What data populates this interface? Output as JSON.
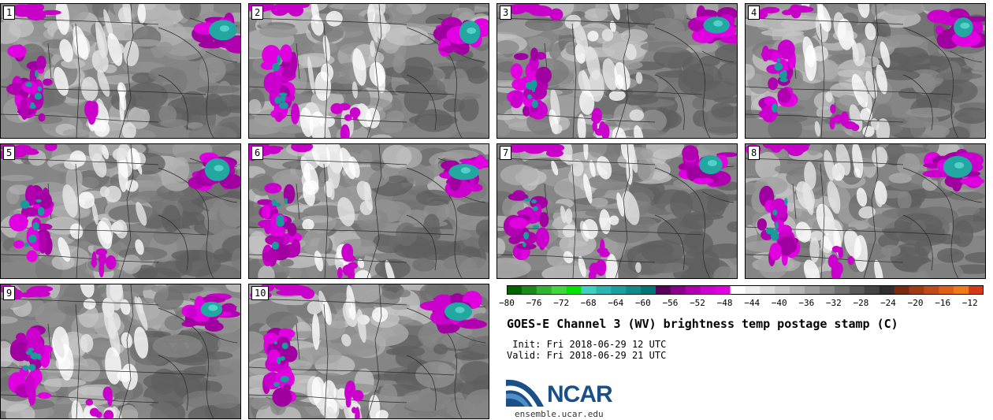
{
  "panels": [
    {
      "label": "1"
    },
    {
      "label": "2"
    },
    {
      "label": "3"
    },
    {
      "label": "4"
    },
    {
      "label": "5"
    },
    {
      "label": "6"
    },
    {
      "label": "7"
    },
    {
      "label": "8"
    },
    {
      "label": "9"
    },
    {
      "label": "10"
    }
  ],
  "colorbar": {
    "ticks": [
      "−80",
      "−76",
      "−72",
      "−68",
      "−64",
      "−60",
      "−56",
      "−52",
      "−48",
      "−44",
      "−40",
      "−36",
      "−32",
      "−28",
      "−24",
      "−20",
      "−16",
      "−12"
    ],
    "range": [
      -80,
      -10
    ],
    "colors": [
      "#006400",
      "#1a8a1a",
      "#2fb52f",
      "#3ed83e",
      "#00e400",
      "#40d0c0",
      "#2ab5b0",
      "#1b9f9f",
      "#108a8a",
      "#007575",
      "#5a005a",
      "#8a008a",
      "#b000b0",
      "#d000d0",
      "#e300e3",
      "#ffffff",
      "#eeeeee",
      "#dcdcdc",
      "#cacaca",
      "#b5b5b5",
      "#9e9e9e",
      "#888888",
      "#707070",
      "#5a5a5a",
      "#444444",
      "#2e2e2e",
      "#7a2a10",
      "#9e3a14",
      "#c04a18",
      "#e06018",
      "#f07a18",
      "#d8381a"
    ]
  },
  "title": "GOES-E Channel 3 (WV) brightness temp postage stamp (C)",
  "init_line": " Init: Fri 2018-06-29 12 UTC",
  "valid_line": "Valid: Fri 2018-06-29 21 UTC",
  "logo": {
    "text": "NCAR"
  },
  "url": "ensemble.ucar.edu"
}
